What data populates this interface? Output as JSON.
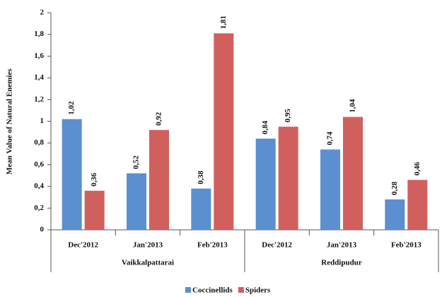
{
  "chart_data": {
    "type": "bar",
    "y_label": "Mean Value of Natural Enemies",
    "groups": [
      {
        "name": "Vaikkalpattarai",
        "categories": [
          "Dec'2012",
          "Jan'2013",
          "Feb'2013"
        ]
      },
      {
        "name": "Reddipudur",
        "categories": [
          "Dec'2012",
          "Jan'2013",
          "Feb'2013"
        ]
      }
    ],
    "series": [
      {
        "name": "Coccinellids",
        "color": "#5b8fd0",
        "values": [
          1.02,
          0.52,
          0.38,
          0.84,
          0.74,
          0.28
        ],
        "value_labels": [
          "1,02",
          "0,52",
          "0,38",
          "0,84",
          "0,74",
          "0,28"
        ]
      },
      {
        "name": "Spiders",
        "color": "#d0605e",
        "values": [
          0.36,
          0.92,
          1.81,
          0.95,
          1.04,
          0.46
        ],
        "value_labels": [
          "0,36",
          "0,92",
          "1,81",
          "0,95",
          "1,04",
          "0,46"
        ]
      }
    ],
    "ylim": [
      0,
      2
    ],
    "yticks": [
      0,
      {
        "value": 0.2,
        "label": "0,2"
      },
      {
        "value": 0.4,
        "label": "0,4"
      },
      {
        "value": 0.6,
        "label": "0,6"
      },
      {
        "value": 0.8,
        "label": "0,8"
      },
      1,
      {
        "value": 1.2,
        "label": "1,2"
      },
      {
        "value": 1.4,
        "label": "1,4"
      },
      {
        "value": 1.6,
        "label": "1,6"
      },
      {
        "value": 1.8,
        "label": "1,8"
      },
      2
    ],
    "grid": false,
    "legend": "bottom"
  }
}
